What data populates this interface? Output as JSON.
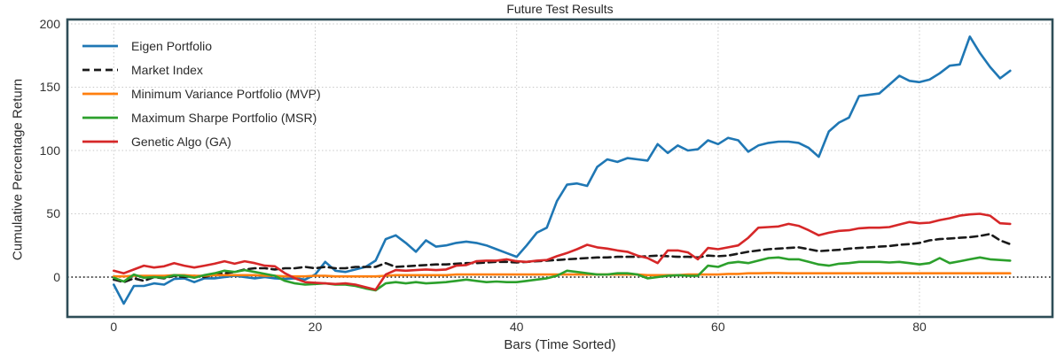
{
  "figure": {
    "title": "Future Test Results",
    "x_axis_label": "Bars (Time Sorted)",
    "y_axis_label": "Cumulative Percentage Return"
  },
  "colors": {
    "background": "#ffffff",
    "spine": "#2e4d57",
    "grid": "#c9c9c9",
    "zero_line": "#141414",
    "text": "#2b2b2b"
  },
  "chart_data": {
    "type": "line",
    "title": "Future Test Results",
    "xlabel": "Bars (Time Sorted)",
    "ylabel": "Cumulative Percentage Return",
    "xlim": [
      -4.6,
      93.2
    ],
    "ylim": [
      -31.5,
      203.5
    ],
    "x_ticks": [
      0,
      20,
      40,
      60,
      80
    ],
    "y_ticks": [
      0,
      50,
      100,
      150,
      200
    ],
    "grid": "dotted",
    "zero_line": true,
    "legend_position": "upper-left",
    "x_start": 0,
    "x_step": 1,
    "x_count": 90,
    "series": [
      {
        "id": "eigen-portfolio",
        "name": "Eigen Portfolio",
        "color": "#1f77b4",
        "dash": null,
        "values": [
          -6,
          -21,
          -7,
          -7,
          -5,
          -6,
          -1.5,
          -1,
          -4,
          -1,
          -1,
          0,
          1,
          0,
          -1,
          0,
          -1,
          -1.5,
          -1,
          -2,
          2,
          12,
          5,
          4,
          6,
          8,
          13,
          30,
          33,
          27,
          20,
          29,
          24,
          25,
          27,
          28,
          27,
          25,
          22,
          19,
          16,
          25,
          35,
          39,
          60,
          73,
          74,
          72,
          87,
          93,
          91,
          94,
          93,
          92,
          105,
          98,
          104,
          100,
          101,
          108,
          105,
          110,
          108,
          99,
          104,
          106,
          107,
          107,
          106,
          102,
          95,
          115,
          122,
          126,
          143,
          144,
          145,
          152,
          159,
          155,
          154,
          156,
          161,
          167,
          168,
          190,
          177,
          166,
          157,
          163
        ]
      },
      {
        "id": "market-index",
        "name": "Market Index",
        "color": "#1a1a1a",
        "dash": [
          8,
          5
        ],
        "values": [
          -2,
          -4,
          -1,
          -3,
          0,
          -1,
          1,
          0,
          1,
          0,
          2,
          3,
          4,
          6,
          7,
          7,
          6,
          7,
          7,
          8,
          7,
          8,
          7,
          7,
          8,
          8,
          8,
          11,
          8,
          8.5,
          9,
          9.5,
          10,
          10,
          10.5,
          11,
          11,
          11.5,
          12,
          12,
          11.5,
          12,
          12.5,
          13,
          13.5,
          14,
          14.5,
          15,
          15.5,
          15.5,
          16,
          16,
          16,
          16.5,
          17,
          16.5,
          16,
          16,
          15.5,
          17,
          16.5,
          17,
          18.5,
          20,
          21,
          22,
          22.5,
          23,
          23.5,
          22,
          20.5,
          21,
          21.5,
          22.5,
          23,
          23.5,
          24,
          24.5,
          25.5,
          26,
          27,
          29,
          30,
          30.5,
          31,
          31.5,
          32.5,
          34,
          29,
          26
        ]
      },
      {
        "id": "minimum-variance-portfolio",
        "name": "Minimum Variance Portfolio (MVP)",
        "color": "#ff7f0e",
        "dash": null,
        "values": [
          0.5,
          0.5,
          1,
          1,
          1,
          1,
          1.5,
          1.5,
          1,
          1,
          1.5,
          1.5,
          1.5,
          1.5,
          1.5,
          1,
          1,
          0.5,
          0.5,
          0.5,
          1,
          1,
          0.5,
          0.5,
          0.5,
          0.5,
          0.5,
          1,
          1.5,
          1.5,
          1.5,
          1.5,
          1.5,
          1.5,
          2,
          2,
          2,
          2,
          2,
          2,
          2,
          2,
          2,
          2,
          2,
          2,
          2,
          2,
          2,
          2,
          2,
          2,
          2,
          1.5,
          1.5,
          1.5,
          1.5,
          2,
          2,
          2,
          2,
          2.5,
          2.5,
          3,
          3,
          3.2,
          3.2,
          3,
          3,
          3,
          3,
          3,
          3,
          3,
          3,
          3,
          3,
          3,
          3,
          3,
          3,
          3,
          3,
          3,
          3,
          3,
          3,
          3,
          3,
          3
        ]
      },
      {
        "id": "maximum-sharpe-portfolio",
        "name": "Maximum Sharpe Portfolio (MSR)",
        "color": "#2ca02c",
        "dash": null,
        "values": [
          -0.5,
          -3.5,
          2,
          -0.5,
          0,
          -0.5,
          1.5,
          1,
          -0.5,
          1.5,
          3,
          5,
          4,
          5.5,
          4,
          2.5,
          1,
          -3,
          -5,
          -6,
          -5.5,
          -5,
          -6,
          -6,
          -7,
          -9,
          -10.5,
          -5,
          -4,
          -5,
          -4,
          -5,
          -4.5,
          -4,
          -3,
          -2,
          -3,
          -4,
          -3.5,
          -4,
          -4,
          -3,
          -2,
          -1,
          1,
          5,
          4,
          3,
          2,
          2,
          3,
          3,
          2,
          -1,
          0,
          1,
          1.5,
          1,
          1,
          9,
          8,
          11,
          12,
          11,
          13,
          15,
          15.5,
          14,
          14,
          12,
          10,
          9,
          10.5,
          11,
          12,
          12,
          12,
          11.5,
          12,
          11,
          10,
          11,
          15,
          11,
          12.5,
          14,
          15.5,
          14,
          13.5,
          13
        ]
      },
      {
        "id": "genetic-algo",
        "name": "Genetic Algo (GA)",
        "color": "#d62728",
        "dash": null,
        "values": [
          5,
          3,
          6,
          9,
          7.5,
          8.5,
          11,
          9,
          7.5,
          9,
          10.5,
          12.5,
          10.5,
          12.5,
          11,
          9,
          8.5,
          3,
          -1,
          -4,
          -4.5,
          -5,
          -5.5,
          -5,
          -6,
          -8,
          -10,
          2,
          5.5,
          5,
          5.5,
          6,
          5.5,
          6,
          9,
          9.5,
          12.5,
          13,
          13,
          14,
          12.5,
          12,
          13,
          13.5,
          16.5,
          19,
          22,
          25.5,
          23.5,
          22.5,
          21,
          20,
          17,
          15,
          11,
          21,
          21,
          19.5,
          14,
          23,
          22,
          23.5,
          25,
          31,
          39,
          39.5,
          40,
          42,
          40.5,
          37,
          33,
          35,
          36.5,
          37,
          38.5,
          39,
          39,
          39.5,
          41.5,
          43.5,
          42.5,
          43,
          45,
          46.5,
          48.5,
          49.5,
          50,
          48.5,
          42.5,
          42
        ]
      }
    ]
  }
}
